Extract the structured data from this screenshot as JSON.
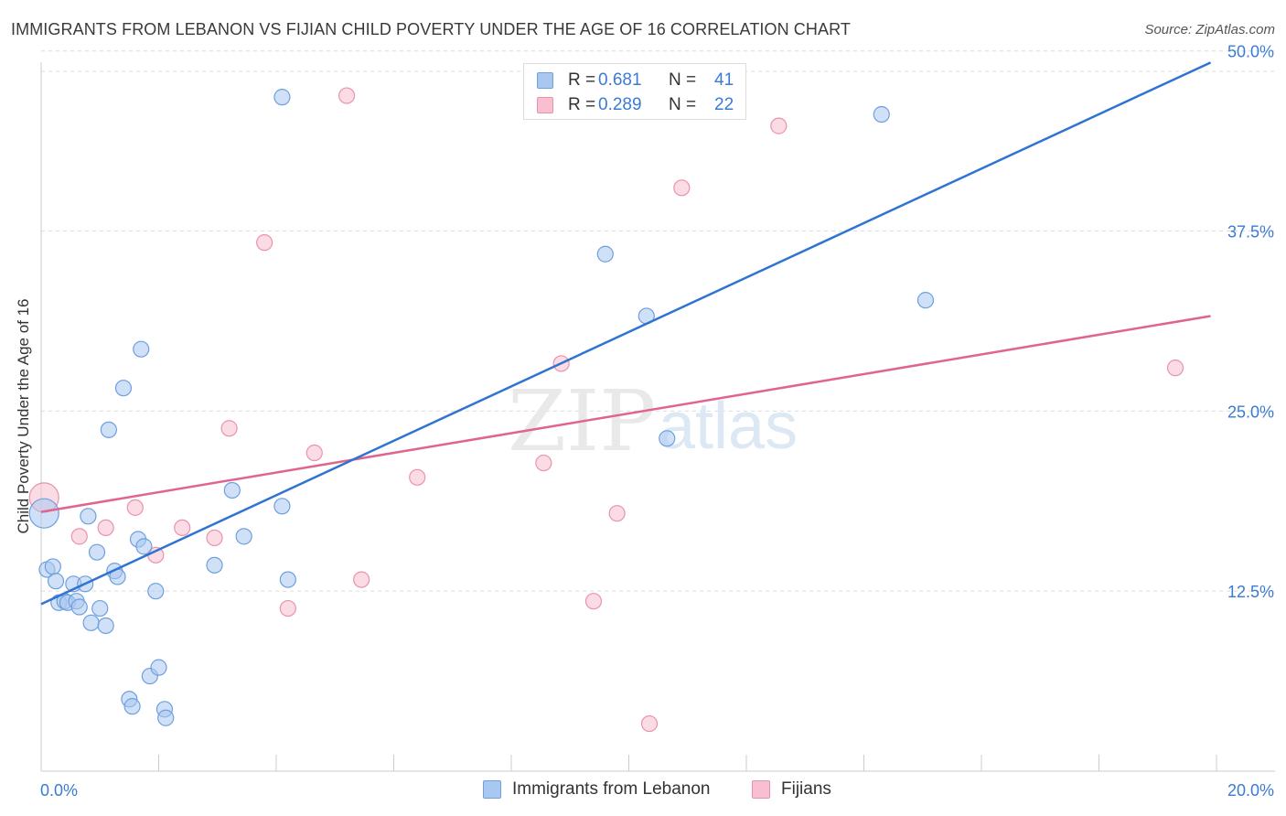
{
  "header": {
    "title": "IMMIGRANTS FROM LEBANON VS FIJIAN CHILD POVERTY UNDER THE AGE OF 16 CORRELATION CHART",
    "source": "Source: ZipAtlas.com"
  },
  "watermark": {
    "zip": "ZIP",
    "atlas": "atlas"
  },
  "legend_top": {
    "rows": [
      {
        "r_label": "R =",
        "r_value": "0.681",
        "n_label": "N =",
        "n_value": "41"
      },
      {
        "r_label": "R =",
        "r_value": "0.289",
        "n_label": "N =",
        "n_value": "22"
      }
    ]
  },
  "legend_bottom": {
    "series_a": "Immigrants from Lebanon",
    "series_b": "Fijians"
  },
  "axes": {
    "ylabel": "Child Poverty Under the Age of 16",
    "x_min_label": "0.0%",
    "x_max_label": "20.0%",
    "y_ticks": [
      "12.5%",
      "25.0%",
      "37.5%",
      "50.0%"
    ]
  },
  "colors": {
    "blue_fill": "#a9c8f0",
    "blue_stroke": "#6e9fde",
    "blue_line": "#2f74d0",
    "pink_fill": "#f7bfd0",
    "pink_stroke": "#e893ae",
    "pink_line": "#e0648e",
    "axis_text": "#3a7bd5"
  },
  "chart_data": {
    "type": "scatter",
    "title": "IMMIGRANTS FROM LEBANON VS FIJIAN CHILD POVERTY UNDER THE AGE OF 16 CORRELATION CHART",
    "xlabel": "",
    "ylabel": "Child Poverty Under the Age of 16",
    "xlim": [
      0,
      20
    ],
    "ylim": [
      0,
      51
    ],
    "x_unit": "%",
    "y_unit": "%",
    "y_ticks": [
      12.5,
      25.0,
      37.5,
      50.0
    ],
    "grid": "horizontal dashed",
    "legend_position": "top-center",
    "series": [
      {
        "name": "Immigrants from Lebanon",
        "R": 0.681,
        "N": 41,
        "trend": {
          "x": [
            0,
            19.9
          ],
          "y": [
            11.6,
            49.2
          ]
        },
        "points": [
          {
            "x": 0.05,
            "y": 17.9,
            "size": "large"
          },
          {
            "x": 0.1,
            "y": 14.0
          },
          {
            "x": 0.2,
            "y": 14.2
          },
          {
            "x": 0.25,
            "y": 13.2
          },
          {
            "x": 0.3,
            "y": 11.7
          },
          {
            "x": 0.4,
            "y": 11.8
          },
          {
            "x": 0.45,
            "y": 11.7
          },
          {
            "x": 0.55,
            "y": 13.0
          },
          {
            "x": 0.6,
            "y": 11.8
          },
          {
            "x": 0.65,
            "y": 11.4
          },
          {
            "x": 0.75,
            "y": 13.0
          },
          {
            "x": 0.8,
            "y": 17.7
          },
          {
            "x": 0.85,
            "y": 10.3
          },
          {
            "x": 0.95,
            "y": 15.2
          },
          {
            "x": 1.0,
            "y": 11.3
          },
          {
            "x": 1.1,
            "y": 10.1
          },
          {
            "x": 1.15,
            "y": 23.7
          },
          {
            "x": 1.25,
            "y": 13.9
          },
          {
            "x": 1.3,
            "y": 13.5
          },
          {
            "x": 1.4,
            "y": 26.6
          },
          {
            "x": 1.5,
            "y": 5.0
          },
          {
            "x": 1.55,
            "y": 4.5
          },
          {
            "x": 1.65,
            "y": 16.1
          },
          {
            "x": 1.7,
            "y": 29.3
          },
          {
            "x": 1.75,
            "y": 15.6
          },
          {
            "x": 1.85,
            "y": 6.6
          },
          {
            "x": 1.95,
            "y": 12.5
          },
          {
            "x": 2.0,
            "y": 7.2
          },
          {
            "x": 2.1,
            "y": 4.3
          },
          {
            "x": 2.12,
            "y": 3.7
          },
          {
            "x": 2.95,
            "y": 14.3
          },
          {
            "x": 3.25,
            "y": 19.5
          },
          {
            "x": 3.45,
            "y": 16.3
          },
          {
            "x": 4.1,
            "y": 18.4
          },
          {
            "x": 4.1,
            "y": 46.8
          },
          {
            "x": 4.2,
            "y": 13.3
          },
          {
            "x": 9.6,
            "y": 35.9
          },
          {
            "x": 10.3,
            "y": 31.6
          },
          {
            "x": 10.65,
            "y": 23.1
          },
          {
            "x": 14.3,
            "y": 45.6
          },
          {
            "x": 15.05,
            "y": 32.7
          }
        ]
      },
      {
        "name": "Fijians",
        "R": 0.289,
        "N": 22,
        "trend": {
          "x": [
            0,
            19.9
          ],
          "y": [
            18.0,
            31.6
          ]
        },
        "points": [
          {
            "x": 0.05,
            "y": 19.0,
            "size": "large"
          },
          {
            "x": 0.65,
            "y": 16.3
          },
          {
            "x": 1.1,
            "y": 16.9
          },
          {
            "x": 1.6,
            "y": 18.3
          },
          {
            "x": 1.95,
            "y": 15.0
          },
          {
            "x": 2.4,
            "y": 16.9
          },
          {
            "x": 2.95,
            "y": 16.2
          },
          {
            "x": 3.2,
            "y": 23.8
          },
          {
            "x": 3.8,
            "y": 36.7
          },
          {
            "x": 4.2,
            "y": 11.3
          },
          {
            "x": 4.65,
            "y": 22.1
          },
          {
            "x": 5.2,
            "y": 46.9
          },
          {
            "x": 5.45,
            "y": 13.3
          },
          {
            "x": 6.4,
            "y": 20.4
          },
          {
            "x": 8.55,
            "y": 21.4
          },
          {
            "x": 8.85,
            "y": 28.3
          },
          {
            "x": 9.4,
            "y": 11.8
          },
          {
            "x": 9.8,
            "y": 17.9
          },
          {
            "x": 10.35,
            "y": 3.3
          },
          {
            "x": 10.9,
            "y": 40.5
          },
          {
            "x": 12.55,
            "y": 44.8
          },
          {
            "x": 19.3,
            "y": 28.0
          }
        ]
      }
    ]
  }
}
